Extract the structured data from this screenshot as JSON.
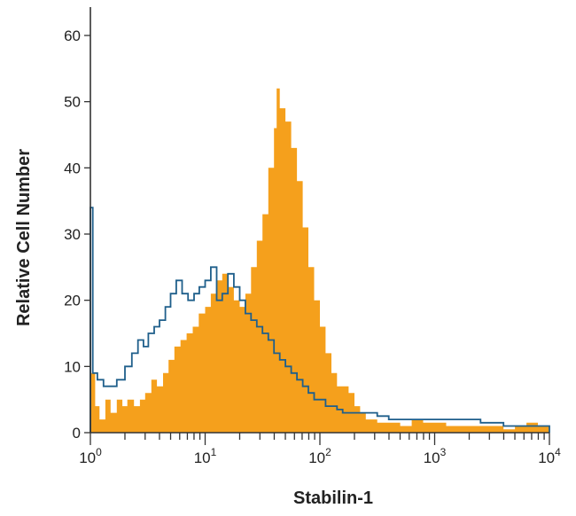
{
  "chart_data": {
    "type": "area",
    "xlabel": "Stabilin-1",
    "ylabel": "Relative Cell Number",
    "x_scale": "log",
    "xlim": [
      1,
      10000
    ],
    "ylim": [
      0,
      65
    ],
    "grid": false,
    "x_ticks": [
      {
        "value": 1,
        "base": "10",
        "exp": "0"
      },
      {
        "value": 10,
        "base": "10",
        "exp": "1"
      },
      {
        "value": 100,
        "base": "10",
        "exp": "2"
      },
      {
        "value": 1000,
        "base": "10",
        "exp": "3"
      },
      {
        "value": 10000,
        "base": "10",
        "exp": "4"
      }
    ],
    "y_ticks": [
      0,
      10,
      20,
      30,
      40,
      50,
      60
    ],
    "series": [
      {
        "style": "filled",
        "color": "#F5A01C",
        "points": [
          [
            1.0,
            9
          ],
          [
            1.1,
            4
          ],
          [
            1.2,
            2
          ],
          [
            1.35,
            5
          ],
          [
            1.5,
            3
          ],
          [
            1.7,
            5
          ],
          [
            1.9,
            4
          ],
          [
            2.1,
            5
          ],
          [
            2.4,
            4
          ],
          [
            2.7,
            5
          ],
          [
            3.0,
            6
          ],
          [
            3.4,
            8
          ],
          [
            3.8,
            7
          ],
          [
            4.3,
            9
          ],
          [
            4.8,
            11
          ],
          [
            5.4,
            13
          ],
          [
            6.1,
            14
          ],
          [
            6.9,
            15
          ],
          [
            7.8,
            16
          ],
          [
            8.8,
            18
          ],
          [
            10.0,
            19
          ],
          [
            11.2,
            21
          ],
          [
            12.6,
            23
          ],
          [
            14.1,
            24
          ],
          [
            15.8,
            22
          ],
          [
            17.8,
            20
          ],
          [
            20.0,
            19
          ],
          [
            22.4,
            21
          ],
          [
            25.1,
            25
          ],
          [
            28.2,
            29
          ],
          [
            31.6,
            33
          ],
          [
            35.5,
            40
          ],
          [
            39.8,
            46
          ],
          [
            42.0,
            52
          ],
          [
            44.7,
            49
          ],
          [
            50.1,
            47
          ],
          [
            56.2,
            43
          ],
          [
            63.1,
            38
          ],
          [
            70.8,
            31
          ],
          [
            79.4,
            25
          ],
          [
            89.1,
            20
          ],
          [
            100,
            16
          ],
          [
            112,
            12
          ],
          [
            126,
            9
          ],
          [
            141,
            7
          ],
          [
            158,
            7
          ],
          [
            178,
            6
          ],
          [
            200,
            4
          ],
          [
            224,
            3
          ],
          [
            251,
            2
          ],
          [
            282,
            2
          ],
          [
            316,
            1.5
          ],
          [
            398,
            1.5
          ],
          [
            501,
            1
          ],
          [
            631,
            2
          ],
          [
            794,
            1.5
          ],
          [
            1000,
            1.5
          ],
          [
            1260,
            1
          ],
          [
            1580,
            1
          ],
          [
            2000,
            1
          ],
          [
            2510,
            1
          ],
          [
            3160,
            1
          ],
          [
            3980,
            0.5
          ],
          [
            5010,
            1
          ],
          [
            6310,
            1.5
          ],
          [
            7940,
            1
          ],
          [
            10000,
            0
          ]
        ]
      },
      {
        "style": "outline",
        "color": "#1F5F8B",
        "points": [
          [
            1.0,
            34
          ],
          [
            1.05,
            9
          ],
          [
            1.15,
            8
          ],
          [
            1.3,
            7
          ],
          [
            1.5,
            7
          ],
          [
            1.7,
            8
          ],
          [
            2.0,
            10
          ],
          [
            2.3,
            12
          ],
          [
            2.6,
            14
          ],
          [
            2.9,
            13
          ],
          [
            3.2,
            15
          ],
          [
            3.6,
            16
          ],
          [
            4.0,
            17
          ],
          [
            4.5,
            19
          ],
          [
            5.0,
            21
          ],
          [
            5.6,
            23
          ],
          [
            6.3,
            21
          ],
          [
            7.1,
            20
          ],
          [
            8.0,
            21
          ],
          [
            8.9,
            22
          ],
          [
            10.0,
            23
          ],
          [
            11.2,
            25
          ],
          [
            12.6,
            20
          ],
          [
            14.1,
            21
          ],
          [
            15.8,
            24
          ],
          [
            17.8,
            22
          ],
          [
            20.0,
            20
          ],
          [
            22.4,
            18
          ],
          [
            25.1,
            17
          ],
          [
            28.2,
            16
          ],
          [
            31.6,
            15
          ],
          [
            35.5,
            14
          ],
          [
            39.8,
            12
          ],
          [
            44.7,
            11
          ],
          [
            50.1,
            10
          ],
          [
            56.2,
            9
          ],
          [
            63.1,
            8
          ],
          [
            70.8,
            7
          ],
          [
            79.4,
            6
          ],
          [
            89.1,
            5
          ],
          [
            100,
            5
          ],
          [
            112,
            4
          ],
          [
            126,
            4
          ],
          [
            141,
            3.5
          ],
          [
            158,
            3
          ],
          [
            178,
            3
          ],
          [
            200,
            3
          ],
          [
            251,
            3
          ],
          [
            316,
            2.5
          ],
          [
            398,
            2
          ],
          [
            501,
            2
          ],
          [
            631,
            2
          ],
          [
            794,
            2
          ],
          [
            1000,
            2
          ],
          [
            1260,
            2
          ],
          [
            1580,
            2
          ],
          [
            2000,
            2
          ],
          [
            2510,
            1.5
          ],
          [
            3160,
            1.5
          ],
          [
            3980,
            1
          ],
          [
            5010,
            1
          ],
          [
            6310,
            1
          ],
          [
            7940,
            1
          ],
          [
            10000,
            0
          ]
        ]
      }
    ]
  }
}
